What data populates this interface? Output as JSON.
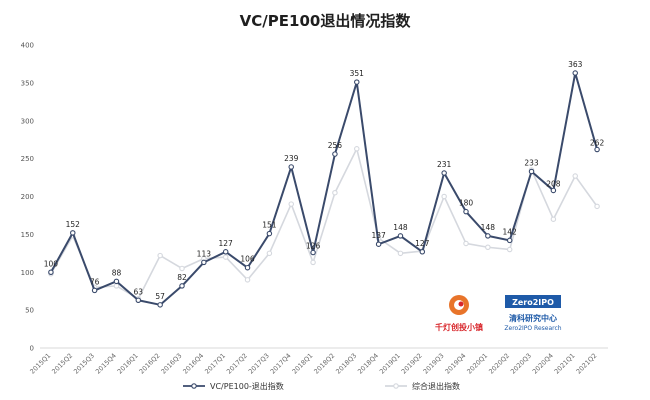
{
  "chart_data": {
    "type": "line",
    "title": "VC/PE100退出情况指数",
    "categories": [
      "2015Q1",
      "2015Q2",
      "2015Q3",
      "2015Q4",
      "2016Q1",
      "2016Q2",
      "2016Q3",
      "2016Q4",
      "2017Q1",
      "2017Q2",
      "2017Q3",
      "2017Q4",
      "2018Q1",
      "2018Q2",
      "2018Q3",
      "2018Q4",
      "2019Q1",
      "2019Q2",
      "2019Q3",
      "2019Q4",
      "2020Q1",
      "2020Q2",
      "2020Q3",
      "2020Q4",
      "2021Q1",
      "2021Q2"
    ],
    "series": [
      {
        "name": "VC/PE100-退出指数",
        "color": "#3a4a6b",
        "values": [
          100,
          152,
          76,
          88,
          63,
          57,
          82,
          113,
          127,
          106,
          151,
          239,
          126,
          256,
          351,
          137,
          148,
          127,
          231,
          180,
          148,
          142,
          233,
          208,
          363,
          262
        ],
        "labels": [
          "100",
          "152",
          "76",
          "88",
          "63",
          "57",
          "82",
          "113",
          "127",
          "106",
          "151",
          "239",
          "126",
          "256",
          "351",
          "137",
          "148",
          "127",
          "231",
          "180",
          "148",
          "142",
          "233",
          "208",
          "363",
          "262"
        ]
      },
      {
        "name": "综合退出指数",
        "color": "#d5d8de",
        "values": [
          98,
          148,
          80,
          82,
          65,
          122,
          105,
          118,
          120,
          90,
          125,
          190,
          113,
          205,
          263,
          145,
          125,
          128,
          200,
          138,
          133,
          130,
          235,
          170,
          227,
          187
        ]
      }
    ],
    "ylim": [
      0,
      400
    ],
    "yticks": [
      "0",
      "50",
      "100",
      "150",
      "200",
      "250",
      "300",
      "350",
      "400"
    ],
    "grid": false,
    "legend": "bottom-center"
  },
  "logos": {
    "qiandeng_text": "千灯创投小镇",
    "zero2ipo_badge": "Zero2IPO",
    "zero2ipo_cn": "清科研究中心",
    "zero2ipo_en": "Zero2IPO Research"
  }
}
